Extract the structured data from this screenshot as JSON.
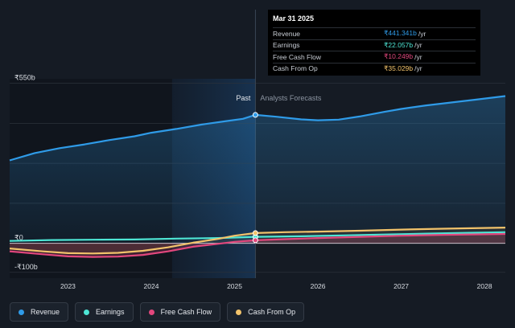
{
  "chart_data": {
    "type": "line",
    "x_ticks": [
      "2023",
      "2024",
      "2025",
      "2026",
      "2027",
      "2028"
    ],
    "y_ticks": [
      "₹550b",
      "₹0",
      "-₹100b"
    ],
    "y_tick_values": [
      550,
      0,
      -100
    ],
    "ylim": [
      -120,
      560
    ],
    "xlim": [
      2022.3,
      2028.25
    ],
    "grid": true,
    "past_label": "Past",
    "forecast_label": "Analysts Forecasts",
    "divider_x": 2025.25,
    "highlight_band": [
      2024.25,
      2025.25
    ],
    "series": [
      {
        "name": "Revenue",
        "color": "#2f9be8",
        "points": [
          [
            2022.3,
            285
          ],
          [
            2022.6,
            310
          ],
          [
            2022.9,
            327
          ],
          [
            2023.2,
            340
          ],
          [
            2023.5,
            355
          ],
          [
            2023.8,
            368
          ],
          [
            2024.0,
            380
          ],
          [
            2024.3,
            393
          ],
          [
            2024.6,
            408
          ],
          [
            2024.9,
            420
          ],
          [
            2025.1,
            428
          ],
          [
            2025.25,
            441.341
          ],
          [
            2025.5,
            435
          ],
          [
            2025.8,
            426
          ],
          [
            2026.0,
            423
          ],
          [
            2026.25,
            425
          ],
          [
            2026.5,
            436
          ],
          [
            2026.8,
            452
          ],
          [
            2027.0,
            462
          ],
          [
            2027.3,
            474
          ],
          [
            2027.6,
            484
          ],
          [
            2027.9,
            494
          ],
          [
            2028.25,
            506
          ]
        ]
      },
      {
        "name": "Earnings",
        "color": "#4ee6d5",
        "points": [
          [
            2022.3,
            8
          ],
          [
            2022.8,
            11
          ],
          [
            2023.3,
            12
          ],
          [
            2023.8,
            13
          ],
          [
            2024.3,
            16
          ],
          [
            2024.8,
            18
          ],
          [
            2025.25,
            22.057
          ],
          [
            2025.8,
            24
          ],
          [
            2026.3,
            27
          ],
          [
            2026.8,
            30
          ],
          [
            2027.3,
            33
          ],
          [
            2027.8,
            36
          ],
          [
            2028.25,
            38
          ]
        ]
      },
      {
        "name": "Free Cash Flow",
        "color": "#e2477d",
        "points": [
          [
            2022.3,
            -28
          ],
          [
            2022.7,
            -38
          ],
          [
            2023.0,
            -45
          ],
          [
            2023.3,
            -47
          ],
          [
            2023.6,
            -46
          ],
          [
            2023.9,
            -40
          ],
          [
            2024.2,
            -28
          ],
          [
            2024.5,
            -12
          ],
          [
            2024.8,
            -2
          ],
          [
            2025.0,
            5
          ],
          [
            2025.25,
            10.249
          ],
          [
            2025.6,
            14
          ],
          [
            2026.0,
            18
          ],
          [
            2026.5,
            22
          ],
          [
            2027.0,
            26
          ],
          [
            2027.5,
            29
          ],
          [
            2028.25,
            32
          ]
        ]
      },
      {
        "name": "Cash From Op",
        "color": "#f2c36b",
        "points": [
          [
            2022.3,
            -18
          ],
          [
            2022.7,
            -28
          ],
          [
            2023.0,
            -34
          ],
          [
            2023.3,
            -35
          ],
          [
            2023.6,
            -33
          ],
          [
            2023.9,
            -26
          ],
          [
            2024.2,
            -14
          ],
          [
            2024.5,
            2
          ],
          [
            2024.8,
            15
          ],
          [
            2025.0,
            26
          ],
          [
            2025.25,
            35.029
          ],
          [
            2025.6,
            38
          ],
          [
            2026.0,
            40
          ],
          [
            2026.5,
            43
          ],
          [
            2027.0,
            47
          ],
          [
            2027.5,
            50
          ],
          [
            2028.25,
            54
          ]
        ]
      }
    ]
  },
  "tooltip": {
    "title": "Mar 31 2025",
    "rows": [
      {
        "label": "Revenue",
        "value": "₹441.341b",
        "unit": "/yr",
        "color": "#2f9be8"
      },
      {
        "label": "Earnings",
        "value": "₹22.057b",
        "unit": "/yr",
        "color": "#4ee6d5"
      },
      {
        "label": "Free Cash Flow",
        "value": "₹10.249b",
        "unit": "/yr",
        "color": "#e2477d"
      },
      {
        "label": "Cash From Op",
        "value": "₹35.029b",
        "unit": "/yr",
        "color": "#f2c36b"
      }
    ]
  },
  "legend": [
    {
      "label": "Revenue",
      "color": "#2f9be8"
    },
    {
      "label": "Earnings",
      "color": "#4ee6d5"
    },
    {
      "label": "Free Cash Flow",
      "color": "#e2477d"
    },
    {
      "label": "Cash From Op",
      "color": "#f2c36b"
    }
  ]
}
